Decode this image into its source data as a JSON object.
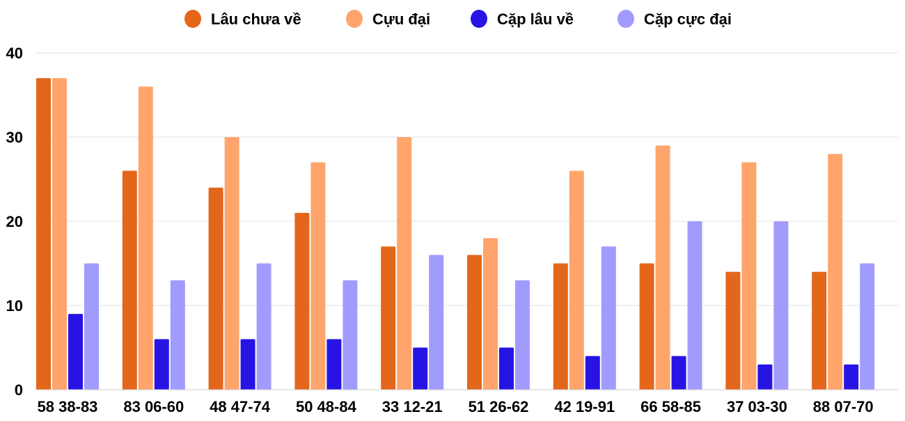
{
  "chart_data": {
    "type": "bar",
    "categories": [
      "58 38-83",
      "83 06-60",
      "48 47-74",
      "50 48-84",
      "33 12-21",
      "51 26-62",
      "42 19-91",
      "66 58-85",
      "37 03-30",
      "88 07-70"
    ],
    "series": [
      {
        "name": "Lâu chưa về",
        "color": "#e4661a",
        "values": [
          37,
          26,
          24,
          21,
          17,
          16,
          15,
          15,
          14,
          14
        ]
      },
      {
        "name": "Cựu đại",
        "color": "#ffa56c",
        "values": [
          37,
          36,
          30,
          27,
          30,
          18,
          26,
          29,
          27,
          28
        ]
      },
      {
        "name": "Cặp lâu về",
        "color": "#2714e4",
        "values": [
          9,
          6,
          6,
          6,
          5,
          5,
          4,
          4,
          3,
          3
        ]
      },
      {
        "name": "Cặp cực đại",
        "color": "#a29bfe",
        "values": [
          15,
          13,
          15,
          13,
          16,
          13,
          17,
          20,
          20,
          15
        ]
      }
    ],
    "yticks": [
      "0",
      "10",
      "20",
      "30",
      "40"
    ],
    "ylim": [
      0,
      40
    ],
    "grid": true,
    "legend": "top"
  }
}
